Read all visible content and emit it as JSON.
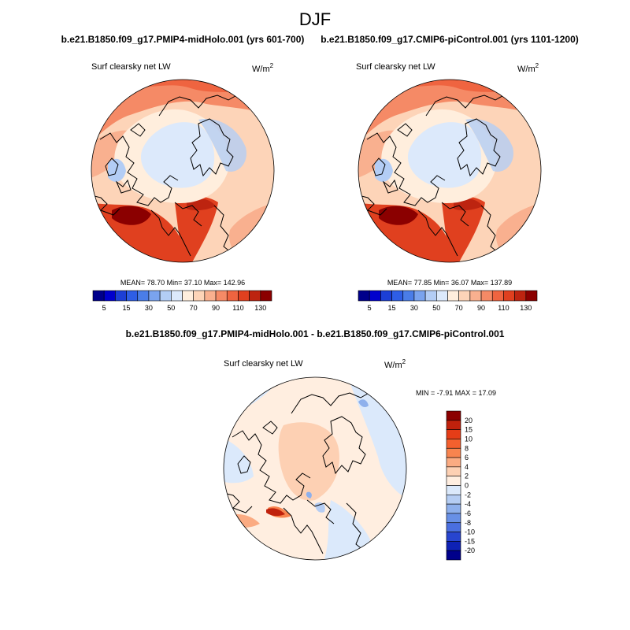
{
  "page_title": "DJF",
  "chart_data": [
    {
      "type": "polar-stereographic-contour-map",
      "title": "b.e21.B1850.f09_g17.PMIP4-midHolo.001 (yrs 601-700)",
      "variable": "Surf clearsky net LW",
      "units": "W/m2",
      "stats": {
        "mean": "78.70",
        "min": "37.10",
        "max": "142.96"
      },
      "stats_label": "MEAN=  78.70  Min=  37.10  Max= 142.96",
      "colorbar": {
        "orientation": "horizontal",
        "levels": [
          5,
          10,
          15,
          20,
          30,
          40,
          50,
          60,
          70,
          80,
          90,
          100,
          110,
          120,
          130
        ],
        "tick_labels": [
          "5",
          "15",
          "30",
          "50",
          "70",
          "90",
          "110",
          "130"
        ],
        "colors": [
          "#00008b",
          "#0000cd",
          "#1c3fd6",
          "#2e5ee6",
          "#4a7de8",
          "#7aa3ee",
          "#b3cdf5",
          "#dce9fb",
          "#ffeedd",
          "#fdd4b8",
          "#f9b08f",
          "#f58a66",
          "#ef6440",
          "#e0401f",
          "#bd2410",
          "#8b0000"
        ]
      }
    },
    {
      "type": "polar-stereographic-contour-map",
      "title": "b.e21.B1850.f09_g17.CMIP6-piControl.001 (yrs 1101-1200)",
      "variable": "Surf clearsky net LW",
      "units": "W/m2",
      "stats": {
        "mean": "77.85",
        "min": "36.07",
        "max": "137.89"
      },
      "stats_label": "MEAN=  77.85  Min=  36.07  Max= 137.89",
      "colorbar": {
        "orientation": "horizontal",
        "levels": [
          5,
          10,
          15,
          20,
          30,
          40,
          50,
          60,
          70,
          80,
          90,
          100,
          110,
          120,
          130
        ],
        "tick_labels": [
          "5",
          "15",
          "30",
          "50",
          "70",
          "90",
          "110",
          "130"
        ],
        "colors": [
          "#00008b",
          "#0000cd",
          "#1c3fd6",
          "#2e5ee6",
          "#4a7de8",
          "#7aa3ee",
          "#b3cdf5",
          "#dce9fb",
          "#ffeedd",
          "#fdd4b8",
          "#f9b08f",
          "#f58a66",
          "#ef6440",
          "#e0401f",
          "#bd2410",
          "#8b0000"
        ]
      }
    },
    {
      "type": "polar-stereographic-contour-map",
      "title": "b.e21.B1850.f09_g17.PMIP4-midHolo.001 - b.e21.B1850.f09_g17.CMIP6-piControl.001",
      "variable": "Surf clearsky net LW",
      "units": "W/m2",
      "stats": {
        "min": "-7.91",
        "max": "17.09"
      },
      "stats_label": "MIN =  -7.91 MAX =  17.09",
      "colorbar": {
        "orientation": "vertical",
        "levels": [
          20,
          15,
          10,
          8,
          6,
          4,
          2,
          0,
          -2,
          -4,
          -6,
          -8,
          -10,
          -15,
          -20
        ],
        "tick_labels": [
          "20",
          "15",
          "10",
          "8",
          "6",
          "4",
          "2",
          "0",
          "-2",
          "-4",
          "-6",
          "-8",
          "-10",
          "-15",
          "-20"
        ],
        "colors": [
          "#8b0000",
          "#c0210c",
          "#e53d17",
          "#f4602e",
          "#f8844f",
          "#fbab82",
          "#fdd0b3",
          "#ffeee0",
          "#dbe9fb",
          "#b5cdf3",
          "#8eb0ec",
          "#6890e6",
          "#4a6fe0",
          "#2845cf",
          "#0e21b5",
          "#00008b"
        ]
      }
    }
  ]
}
